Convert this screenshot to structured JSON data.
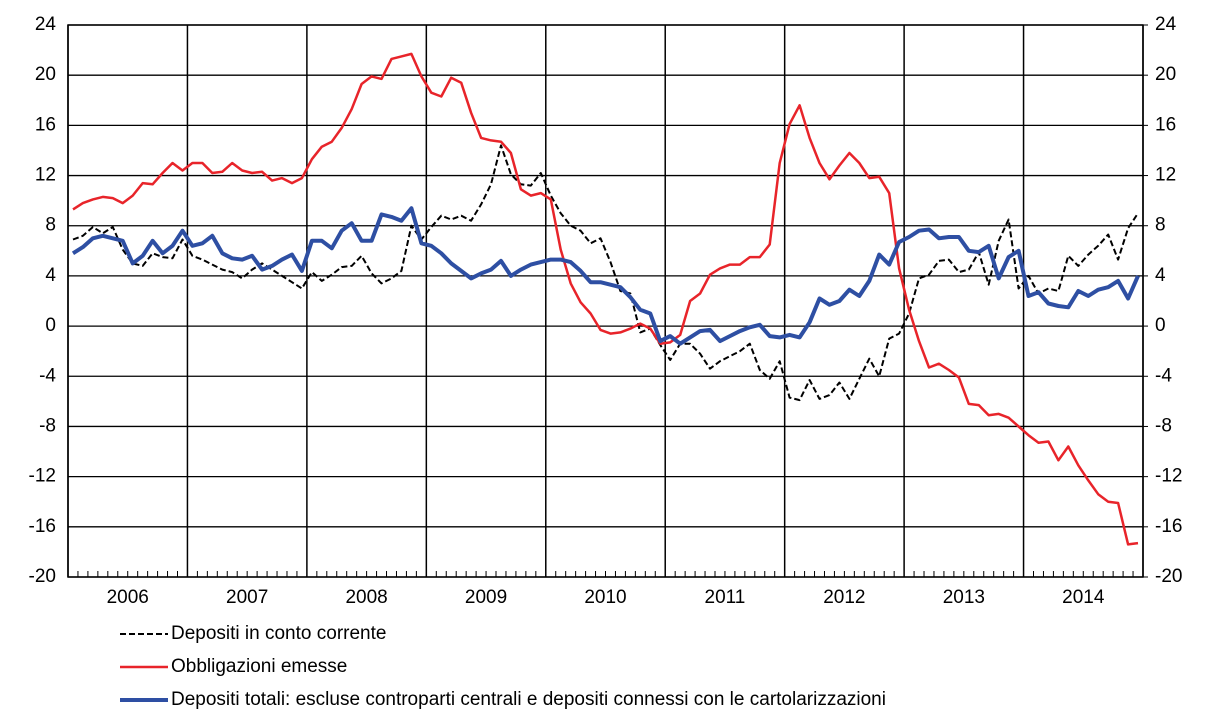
{
  "chart_data": {
    "type": "line",
    "categories": [
      null,
      null,
      null,
      null,
      null,
      null,
      "2006",
      null,
      null,
      null,
      null,
      null,
      null,
      null,
      null,
      null,
      null,
      null,
      "2007",
      null,
      null,
      null,
      null,
      null,
      null,
      null,
      null,
      null,
      null,
      null,
      "2008",
      null,
      null,
      null,
      null,
      null,
      null,
      null,
      null,
      null,
      null,
      null,
      "2009",
      null,
      null,
      null,
      null,
      null,
      null,
      null,
      null,
      null,
      null,
      null,
      "2010",
      null,
      null,
      null,
      null,
      null,
      null,
      null,
      null,
      null,
      null,
      null,
      "2011",
      null,
      null,
      null,
      null,
      null,
      null,
      null,
      null,
      null,
      null,
      null,
      "2012",
      null,
      null,
      null,
      null,
      null,
      null,
      null,
      null,
      null,
      null,
      null,
      "2013",
      null,
      null,
      null,
      null,
      null,
      null,
      null,
      null,
      null,
      null,
      null,
      "2014",
      null,
      null,
      null,
      null,
      null
    ],
    "series": [
      {
        "name": "Depositi in conto corrente",
        "color": "#000000",
        "style": "dashed",
        "linewidth": 2,
        "values": [
          6.9,
          7.2,
          7.9,
          7.4,
          7.9,
          6.1,
          5.0,
          4.8,
          5.8,
          5.5,
          5.4,
          6.9,
          5.6,
          5.3,
          4.9,
          4.5,
          4.3,
          3.8,
          4.5,
          5.0,
          4.5,
          4.0,
          3.5,
          3.0,
          4.3,
          3.6,
          4.1,
          4.7,
          4.8,
          5.6,
          4.2,
          3.4,
          3.8,
          4.4,
          8.0,
          6.9,
          7.9,
          8.8,
          8.5,
          8.8,
          8.4,
          9.7,
          11.3,
          14.4,
          12.1,
          11.3,
          11.2,
          12.2,
          10.4,
          9.0,
          8.0,
          7.6,
          6.6,
          7.0,
          5.1,
          2.8,
          2.6,
          -0.5,
          -0.2,
          -1.5,
          -2.7,
          -1.4,
          -1.4,
          -2.2,
          -3.4,
          -2.8,
          -2.4,
          -2.0,
          -1.4,
          -3.5,
          -4.2,
          -2.8,
          -5.7,
          -5.9,
          -4.3,
          -5.8,
          -5.5,
          -4.5,
          -5.8,
          -4.2,
          -2.6,
          -4.0,
          -1.0,
          -0.6,
          1.0,
          3.8,
          4.1,
          5.2,
          5.3,
          4.3,
          4.5,
          5.9,
          3.3,
          6.8,
          8.5,
          3.0,
          4.0,
          2.6,
          3.0,
          2.8,
          5.6,
          4.8,
          5.7,
          6.4,
          7.3,
          5.3,
          7.8,
          9.0
        ]
      },
      {
        "name": "Obbligazioni emesse",
        "color": "#e8242a",
        "style": "solid",
        "linewidth": 2.5,
        "values": [
          9.3,
          9.8,
          10.1,
          10.3,
          10.2,
          9.8,
          10.4,
          11.4,
          11.3,
          12.2,
          13.0,
          12.4,
          13.0,
          13.0,
          12.2,
          12.3,
          13.0,
          12.4,
          12.2,
          12.3,
          11.6,
          11.8,
          11.4,
          11.8,
          13.3,
          14.3,
          14.7,
          15.8,
          17.3,
          19.3,
          19.9,
          19.7,
          21.3,
          21.5,
          21.7,
          19.9,
          18.6,
          18.3,
          19.8,
          19.4,
          17.0,
          15.0,
          14.8,
          14.7,
          13.8,
          10.9,
          10.4,
          10.6,
          10.1,
          6.1,
          3.4,
          1.9,
          1.0,
          -0.3,
          -0.6,
          -0.5,
          -0.2,
          0.2,
          -0.2,
          -1.4,
          -1.3,
          -0.7,
          2.0,
          2.6,
          4.1,
          4.6,
          4.9,
          4.9,
          5.5,
          5.5,
          6.5,
          13.0,
          16.1,
          17.6,
          15.0,
          13.0,
          11.7,
          12.8,
          13.8,
          13.0,
          11.8,
          11.9,
          10.6,
          4.6,
          1.3,
          -1.2,
          -3.3,
          -3.0,
          -3.5,
          -4.1,
          -6.2,
          -6.3,
          -7.1,
          -7.0,
          -7.3,
          -8.0,
          -8.7,
          -9.3,
          -9.2,
          -10.7,
          -9.6,
          -11.1,
          -12.3,
          -13.4,
          -14.0,
          -14.1,
          -17.4,
          -17.3
        ]
      },
      {
        "name": "Depositi totali: escluse controparti centrali e depositi connessi con le cartolarizzazioni",
        "color": "#2e4fa3",
        "style": "solid",
        "linewidth": 4,
        "values": [
          5.8,
          6.3,
          7.0,
          7.2,
          7.0,
          6.8,
          5.0,
          5.6,
          6.8,
          5.8,
          6.4,
          7.6,
          6.4,
          6.6,
          7.2,
          5.8,
          5.4,
          5.3,
          5.6,
          4.5,
          4.8,
          5.3,
          5.7,
          4.4,
          6.8,
          6.8,
          6.2,
          7.6,
          8.2,
          6.8,
          6.8,
          8.9,
          8.7,
          8.4,
          9.4,
          6.6,
          6.4,
          5.8,
          5.0,
          4.4,
          3.8,
          4.2,
          4.5,
          5.2,
          4.0,
          4.5,
          4.9,
          5.1,
          5.3,
          5.3,
          5.1,
          4.4,
          3.5,
          3.5,
          3.3,
          3.1,
          2.3,
          1.3,
          1.0,
          -1.2,
          -0.8,
          -1.4,
          -0.9,
          -0.4,
          -0.3,
          -1.2,
          -0.8,
          -0.4,
          -0.1,
          0.1,
          -0.8,
          -0.9,
          -0.7,
          -0.9,
          0.3,
          2.2,
          1.7,
          2.0,
          2.9,
          2.4,
          3.6,
          5.7,
          4.9,
          6.7,
          7.1,
          7.6,
          7.7,
          7.0,
          7.1,
          7.1,
          6.0,
          5.9,
          6.4,
          3.8,
          5.5,
          6.0,
          2.4,
          2.7,
          1.8,
          1.6,
          1.5,
          2.8,
          2.4,
          2.9,
          3.1,
          3.6,
          2.2,
          4.0
        ]
      }
    ],
    "ylim": [
      -20,
      24
    ],
    "yticks": [
      -20,
      -16,
      -12,
      -8,
      -4,
      0,
      4,
      8,
      12,
      16,
      20,
      24
    ],
    "y2lim": [
      -20,
      24
    ],
    "y2ticks": [
      -20,
      -16,
      -12,
      -8,
      -4,
      0,
      4,
      8,
      12,
      16,
      20,
      24
    ],
    "grid": true,
    "legend": "bottom"
  }
}
